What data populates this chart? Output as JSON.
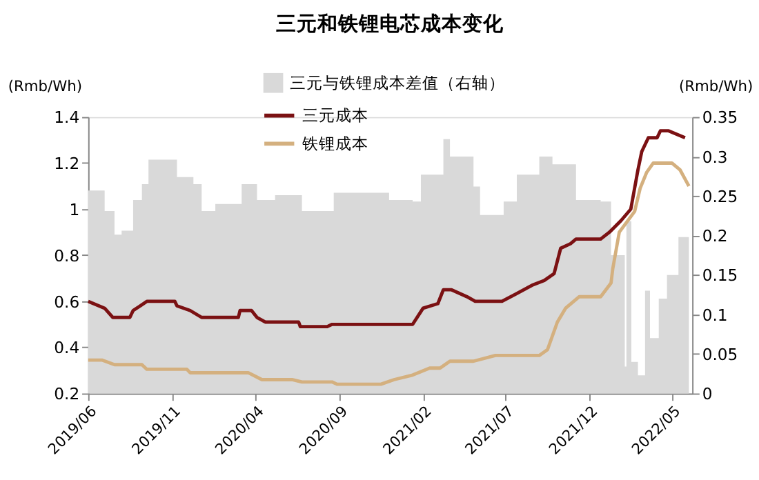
{
  "chart_data": {
    "type": "line",
    "title": "三元和铁锂电芯成本变化",
    "ylabel": "(Rmb/Wh)",
    "y2label": "(Rmb/Wh)",
    "legend": "top",
    "grid": false,
    "xlim": [
      "2019-06-01",
      "2022-06-07"
    ],
    "xticks": [
      {
        "value": "2019-06",
        "label": "2019/06"
      },
      {
        "value": "2019-11",
        "label": "2019/11"
      },
      {
        "value": "2020-04",
        "label": "2020/04"
      },
      {
        "value": "2020-09",
        "label": "2020/09"
      },
      {
        "value": "2021-02",
        "label": "2021/02"
      },
      {
        "value": "2021-07",
        "label": "2021/07"
      },
      {
        "value": "2021-12",
        "label": "2021/12"
      },
      {
        "value": "2022-05",
        "label": "2022/05"
      }
    ],
    "ylim": [
      0.2,
      1.4
    ],
    "yticks": [
      0.2,
      0.4,
      0.6,
      0.8,
      1,
      1.2,
      1.4
    ],
    "y2lim": [
      0,
      0.35
    ],
    "y2ticks": [
      0,
      0.05,
      0.1,
      0.15,
      0.2,
      0.25,
      0.3,
      0.35
    ],
    "series": [
      {
        "name": "三元与铁锂成本差值（右轴）",
        "type": "area",
        "axis": "y2",
        "color": "#d9d9d9",
        "x": [
          "2019-06-01",
          "2019-06-22",
          "2019-07-01",
          "2019-07-16",
          "2019-07-19",
          "2019-08-01",
          "2019-08-13",
          "2019-08-22",
          "2019-09-04",
          "2019-09-07",
          "2019-09-19",
          "2019-11-04",
          "2019-11-10",
          "2019-11-28",
          "2019-12-10",
          "2019-12-25",
          "2020-01-16",
          "2020-01-19",
          "2020-02-28",
          "2020-03-07",
          "2020-03-25",
          "2020-04-04",
          "2020-04-28",
          "2020-05-07",
          "2020-06-16",
          "2020-06-25",
          "2020-08-10",
          "2020-08-22",
          "2020-11-16",
          "2020-12-01",
          "2021-01-13",
          "2021-01-28",
          "2021-02-22",
          "2021-03-10",
          "2021-03-22",
          "2021-04-10",
          "2021-05-04",
          "2021-05-16",
          "2021-06-22",
          "2021-06-28",
          "2021-07-22",
          "2021-09-01",
          "2021-09-25",
          "2021-10-13",
          "2021-11-07",
          "2021-12-22",
          "2022-01-10",
          "2022-02-04",
          "2022-02-07",
          "2022-02-16",
          "2022-02-28",
          "2022-03-13",
          "2022-03-22",
          "2022-04-07",
          "2022-04-22",
          "2022-05-13",
          "2022-06-01"
        ],
        "values": [
          0.257,
          0.257,
          0.231,
          0.231,
          0.201,
          0.206,
          0.206,
          0.245,
          0.245,
          0.265,
          0.296,
          0.296,
          0.274,
          0.274,
          0.265,
          0.231,
          0.231,
          0.24,
          0.24,
          0.265,
          0.265,
          0.245,
          0.245,
          0.251,
          0.251,
          0.231,
          0.231,
          0.254,
          0.254,
          0.245,
          0.243,
          0.277,
          0.277,
          0.322,
          0.3,
          0.3,
          0.262,
          0.226,
          0.226,
          0.243,
          0.277,
          0.3,
          0.29,
          0.29,
          0.245,
          0.243,
          0.175,
          0.034,
          0.218,
          0.04,
          0.023,
          0.13,
          0.07,
          0.12,
          0.15,
          0.198,
          0.218
        ]
      },
      {
        "name": "三元成本",
        "color": "#7b1113",
        "x": [
          "2019-06-01",
          "2019-07-01",
          "2019-07-16",
          "2019-08-16",
          "2019-08-22",
          "2019-09-04",
          "2019-09-16",
          "2019-11-06",
          "2019-11-10",
          "2019-12-04",
          "2019-12-25",
          "2020-03-01",
          "2020-03-04",
          "2020-03-25",
          "2020-04-04",
          "2020-04-19",
          "2020-06-19",
          "2020-06-22",
          "2020-08-10",
          "2020-08-19",
          "2021-01-13",
          "2021-02-01",
          "2021-02-28",
          "2021-03-10",
          "2021-03-25",
          "2021-04-22",
          "2021-05-07",
          "2021-06-25",
          "2021-07-19",
          "2021-08-19",
          "2021-09-10",
          "2021-09-28",
          "2021-10-10",
          "2021-10-28",
          "2021-11-07",
          "2021-12-22",
          "2022-01-07",
          "2022-01-28",
          "2022-02-15",
          "2022-02-28",
          "2022-03-07",
          "2022-03-19",
          "2022-04-04",
          "2022-04-10",
          "2022-04-25",
          "2022-05-25"
        ],
        "values": [
          0.6,
          0.57,
          0.53,
          0.53,
          0.56,
          0.58,
          0.6,
          0.6,
          0.58,
          0.56,
          0.53,
          0.53,
          0.56,
          0.56,
          0.53,
          0.51,
          0.51,
          0.49,
          0.49,
          0.5,
          0.5,
          0.57,
          0.59,
          0.65,
          0.65,
          0.62,
          0.6,
          0.6,
          0.63,
          0.67,
          0.69,
          0.72,
          0.83,
          0.85,
          0.87,
          0.87,
          0.9,
          0.95,
          1.0,
          1.17,
          1.25,
          1.31,
          1.31,
          1.34,
          1.34,
          1.31
        ]
      },
      {
        "name": "铁锂成本",
        "color": "#d4b07f",
        "x": [
          "2019-06-01",
          "2019-06-26",
          "2019-07-19",
          "2019-09-07",
          "2019-09-16",
          "2019-11-28",
          "2019-12-04",
          "2020-03-19",
          "2020-04-13",
          "2020-06-07",
          "2020-06-25",
          "2020-08-19",
          "2020-08-28",
          "2020-11-16",
          "2020-12-10",
          "2021-01-13",
          "2021-02-13",
          "2021-03-04",
          "2021-03-22",
          "2021-05-04",
          "2021-06-13",
          "2021-09-01",
          "2021-09-16",
          "2021-10-04",
          "2021-10-19",
          "2021-11-13",
          "2021-12-22",
          "2022-01-10",
          "2022-01-13",
          "2022-01-25",
          "2022-02-22",
          "2022-03-04",
          "2022-03-16",
          "2022-03-28",
          "2022-05-01",
          "2022-05-16",
          "2022-06-01"
        ],
        "values": [
          0.345,
          0.345,
          0.325,
          0.325,
          0.305,
          0.305,
          0.29,
          0.29,
          0.26,
          0.26,
          0.25,
          0.25,
          0.24,
          0.24,
          0.26,
          0.28,
          0.31,
          0.31,
          0.34,
          0.34,
          0.365,
          0.365,
          0.39,
          0.51,
          0.57,
          0.62,
          0.62,
          0.68,
          0.74,
          0.9,
          0.99,
          1.09,
          1.16,
          1.2,
          1.2,
          1.17,
          1.1
        ]
      }
    ]
  }
}
